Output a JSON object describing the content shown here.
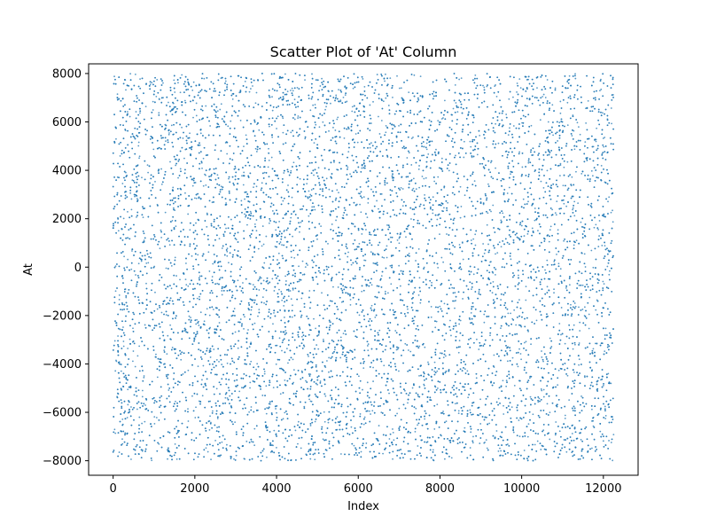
{
  "chart_data": {
    "type": "scatter",
    "title": "Scatter Plot of 'At' Column",
    "xlabel": "Index",
    "ylabel": "At",
    "xlim": [
      -600,
      12850
    ],
    "ylim": [
      -8600,
      8400
    ],
    "x_ticks": [
      0,
      2000,
      4000,
      6000,
      8000,
      10000,
      12000
    ],
    "x_tick_labels": [
      "0",
      "2000",
      "4000",
      "6000",
      "8000",
      "10000",
      "12000"
    ],
    "y_ticks": [
      -8000,
      -6000,
      -4000,
      -2000,
      0,
      2000,
      4000,
      6000,
      8000
    ],
    "y_tick_labels": [
      "−8000",
      "−6000",
      "−4000",
      "−2000",
      "0",
      "2000",
      "4000",
      "6000",
      "8000"
    ],
    "grid": false,
    "series": [
      {
        "marker_color": "#1f77b4",
        "point_count": 12250,
        "x_range": [
          0,
          12250
        ],
        "y_range": [
          -8000,
          8000
        ],
        "distribution": "uniform",
        "points": [
          [
            30,
            7880
          ],
          [
            150,
            -7650
          ],
          [
            320,
            3120
          ],
          [
            410,
            -2980
          ],
          [
            560,
            6420
          ],
          [
            720,
            -5100
          ],
          [
            860,
            180
          ],
          [
            990,
            4870
          ],
          [
            1120,
            -7310
          ],
          [
            1280,
            2260
          ],
          [
            1430,
            -880
          ],
          [
            1590,
            7620
          ],
          [
            1710,
            -4420
          ],
          [
            1880,
            1540
          ],
          [
            2010,
            -6220
          ],
          [
            2150,
            5530
          ],
          [
            2300,
            -1720
          ],
          [
            2470,
            3880
          ],
          [
            2610,
            -7820
          ],
          [
            2790,
            640
          ],
          [
            2930,
            6940
          ],
          [
            3060,
            -3350
          ],
          [
            3220,
            2810
          ],
          [
            3380,
            -5780
          ],
          [
            3510,
            7210
          ],
          [
            3670,
            -1240
          ],
          [
            3820,
            4410
          ],
          [
            3990,
            -6890
          ],
          [
            4130,
            920
          ],
          [
            4280,
            -3960
          ],
          [
            4450,
            6110
          ],
          [
            4600,
            -7480
          ],
          [
            4740,
            3450
          ],
          [
            4910,
            -2140
          ],
          [
            5050,
            5790
          ],
          [
            5200,
            -5330
          ],
          [
            5360,
            1770
          ],
          [
            5510,
            -830
          ],
          [
            5680,
            7480
          ],
          [
            5830,
            -6610
          ],
          [
            5970,
            2590
          ],
          [
            6130,
            -4170
          ],
          [
            6290,
            4930
          ],
          [
            6440,
            -7090
          ],
          [
            6590,
            410
          ],
          [
            6750,
            6680
          ],
          [
            6910,
            -2630
          ],
          [
            7060,
            3710
          ],
          [
            7210,
            -5610
          ],
          [
            7370,
            7930
          ],
          [
            7520,
            -1480
          ],
          [
            7680,
            5120
          ],
          [
            7830,
            -7960
          ],
          [
            7990,
            1360
          ],
          [
            8140,
            -3670
          ],
          [
            8300,
            6290
          ],
          [
            8460,
            -6040
          ],
          [
            8610,
            2970
          ],
          [
            8770,
            -910
          ],
          [
            8920,
            4650
          ],
          [
            9080,
            -7270
          ],
          [
            9230,
            210
          ],
          [
            9390,
            7050
          ],
          [
            9540,
            -4690
          ],
          [
            9700,
            3290
          ],
          [
            9860,
            -2390
          ],
          [
            10010,
            5960
          ],
          [
            10170,
            -6480
          ],
          [
            10320,
            1930
          ],
          [
            10480,
            -5040
          ],
          [
            10630,
            7740
          ],
          [
            10790,
            -1060
          ],
          [
            10950,
            4220
          ],
          [
            11100,
            -7640
          ],
          [
            11260,
            2440
          ],
          [
            11410,
            -3140
          ],
          [
            11570,
            6560
          ],
          [
            11720,
            -5880
          ],
          [
            11880,
            850
          ],
          [
            12030,
            5360
          ],
          [
            12180,
            -2810
          ],
          [
            12240,
            7120
          ],
          [
            12250,
            -6920
          ],
          [
            260,
            2010
          ],
          [
            1050,
            -3720
          ],
          [
            1960,
            6180
          ],
          [
            3150,
            -4980
          ],
          [
            4020,
            300
          ],
          [
            5580,
            -7720
          ],
          [
            6680,
            5840
          ],
          [
            7790,
            -2070
          ],
          [
            8850,
            3560
          ],
          [
            9930,
            -6330
          ],
          [
            11030,
            1080
          ],
          [
            12120,
            -4400
          ],
          [
            620,
            5010
          ],
          [
            2550,
            -680
          ],
          [
            4680,
            -3280
          ],
          [
            6820,
            7400
          ],
          [
            8990,
            -5460
          ],
          [
            11330,
            3940
          ]
        ]
      }
    ]
  }
}
